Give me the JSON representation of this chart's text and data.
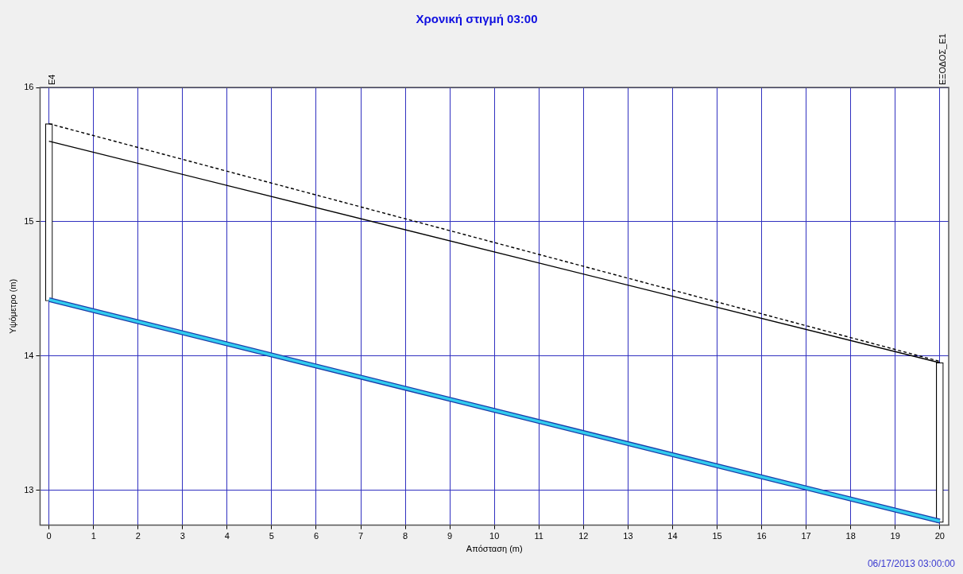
{
  "chart_data": {
    "type": "line",
    "title": "Χρονική στιγμή 03:00",
    "xlabel": "Απόσταση (m)",
    "ylabel": "Υψόμετρο (m)",
    "x": [
      0,
      20
    ],
    "xlim": [
      -0.2,
      20.2
    ],
    "xticks": [
      0,
      1,
      2,
      3,
      4,
      5,
      6,
      7,
      8,
      9,
      10,
      11,
      12,
      13,
      14,
      15,
      16,
      17,
      18,
      19,
      20
    ],
    "ylim": [
      12.74,
      16
    ],
    "yticks": [
      13,
      14,
      15,
      16
    ],
    "grid": true,
    "legend": false,
    "marker": "none",
    "series": [
      {
        "type": "bar",
        "color": "#ffffff",
        "base": [
          14.41,
          12.76
        ],
        "values": [
          1.32,
          1.19
        ]
      },
      {
        "line_style": "dashed",
        "color": "#000000",
        "values": [
          15.73,
          13.96
        ]
      },
      {
        "line_style": "solid",
        "color": "#000000",
        "values": [
          15.6,
          13.95
        ]
      },
      {
        "line_style": "solid",
        "color": "#33ccee",
        "values": [
          14.42,
          12.77
        ]
      }
    ],
    "annotations": [
      "E4",
      "ΕΞΟΔΟΣ_E1",
      "06/17/2013 03:00:00"
    ]
  }
}
